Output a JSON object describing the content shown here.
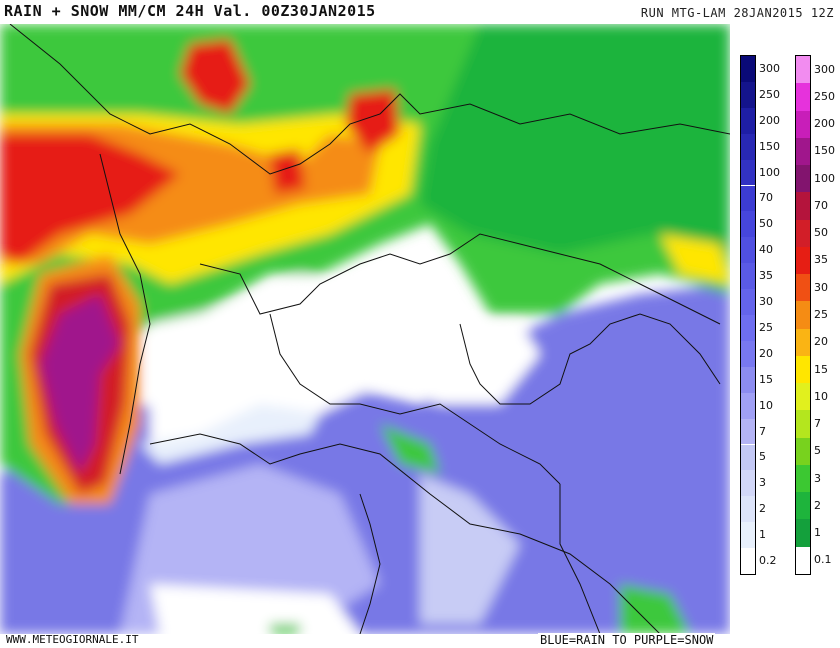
{
  "header": {
    "title": "RAIN + SNOW MM/CM 24H Val. 00Z30JAN2015",
    "run": "RUN MTG-LAM 28JAN2015 12Z"
  },
  "footer": {
    "site": "WWW.METEOGIORNALE.IT",
    "note": "BLUE=RAIN      TO PURPLE=SNOW"
  },
  "legend_rain": {
    "ticks": [
      "300",
      "250",
      "200",
      "150",
      "100",
      "70",
      "50",
      "40",
      "35",
      "30",
      "25",
      "20",
      "15",
      "10",
      "7",
      "5",
      "3",
      "2",
      "1",
      "0.2"
    ],
    "colors": [
      "#0a0a78",
      "#14148c",
      "#1e1ea5",
      "#2828b4",
      "#3232c3",
      "#3c3cd2",
      "#4646dc",
      "#5050e1",
      "#5a5ae6",
      "#6464eb",
      "#6e6ef0",
      "#7878f0",
      "#8c8cf0",
      "#a0a0f5",
      "#b4b4f5",
      "#c3c8f5",
      "#d2d7f8",
      "#dde4fa",
      "#e8f0fc",
      "#ffffff"
    ]
  },
  "legend_snow": {
    "ticks": [
      "300",
      "250",
      "200",
      "150",
      "100",
      "70",
      "50",
      "35",
      "30",
      "25",
      "20",
      "15",
      "10",
      "7",
      "5",
      "3",
      "2",
      "1",
      "0.1"
    ],
    "colors": [
      "#f28cf0",
      "#e632dc",
      "#c81eb9",
      "#a0168c",
      "#82146e",
      "#b4143c",
      "#d21e28",
      "#e61e14",
      "#f05014",
      "#f58c14",
      "#fab414",
      "#ffe600",
      "#e1f01e",
      "#b4e61e",
      "#78d21e",
      "#3cc832",
      "#1eb43c",
      "#14a03c",
      "#ffffff"
    ]
  }
}
